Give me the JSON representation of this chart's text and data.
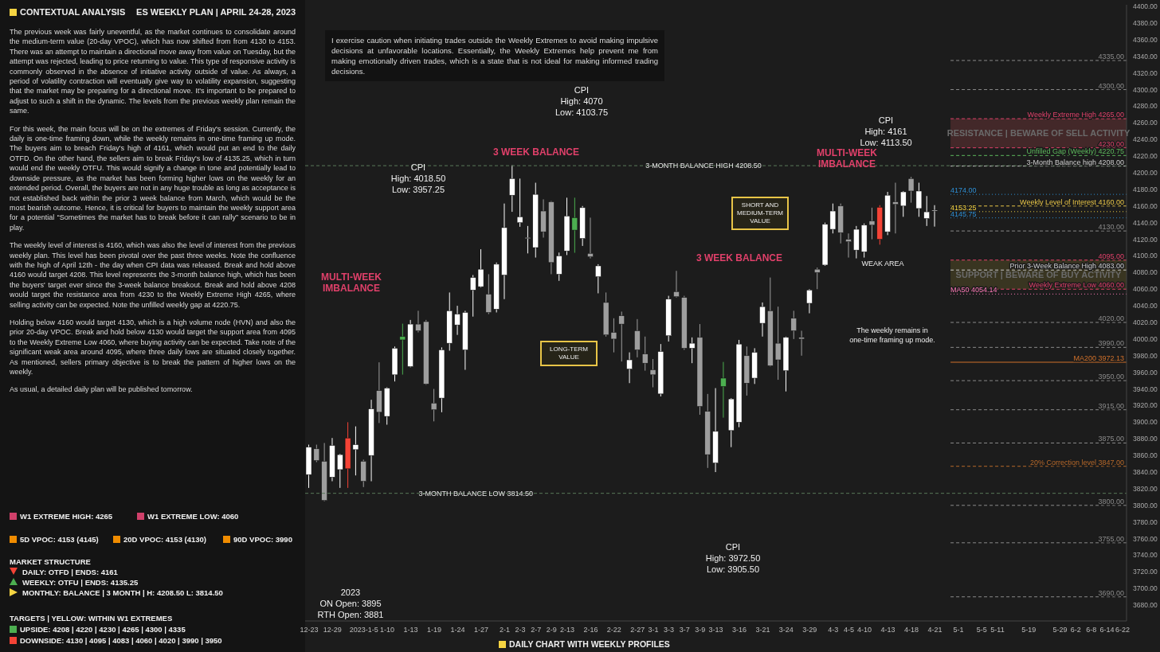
{
  "chart_data": {
    "type": "candlestick",
    "title": "ES WEEKLY PLAN | APRIL 24-28, 2023",
    "subtitle": "CONTEXTUAL ANALYSIS",
    "categories": [
      "12-23",
      null,
      null,
      "12-29",
      null,
      null,
      null,
      "2023-1-5",
      null,
      null,
      "1-10",
      null,
      null,
      "1-13",
      null,
      null,
      "1-19",
      null,
      null,
      "1-24",
      null,
      null,
      "1-27",
      null,
      null,
      "2-1",
      null,
      "2-3",
      null,
      "2-7",
      null,
      "2-9",
      null,
      "2-13",
      null,
      null,
      "2-16",
      null,
      null,
      "2-22",
      null,
      null,
      "2-27",
      null,
      "3-1",
      null,
      "3-3",
      null,
      "3-7",
      null,
      "3-9",
      null,
      "3-13",
      null,
      null,
      "3-16",
      null,
      null,
      "3-21",
      null,
      null,
      "3-24",
      null,
      null,
      "3-29",
      null,
      null,
      "4-3",
      null,
      "4-5",
      null,
      "4-10",
      null,
      null,
      "4-13",
      null,
      null,
      "4-18",
      null,
      null,
      "4-21",
      null,
      null,
      "5-1",
      null,
      null,
      "5-5",
      null,
      "5-11",
      null,
      null,
      null,
      "5-19",
      null,
      null,
      null,
      "5-29",
      null,
      "6-2",
      null,
      "6-8",
      null,
      "6-14",
      null,
      "6-22"
    ],
    "ohlc": [
      [
        3837,
        3873,
        3821,
        3870
      ],
      [
        3868,
        3873,
        3852,
        3854
      ],
      [
        3853,
        3875,
        3805,
        3806
      ],
      [
        3834,
        3881,
        3829,
        3872
      ],
      [
        3843,
        3862,
        3821,
        3861
      ],
      [
        3881,
        3900,
        3821,
        3844
      ],
      [
        3867,
        3895,
        3836,
        3873
      ],
      [
        3853,
        3855,
        3822,
        3829
      ],
      [
        3860,
        3927,
        3829,
        3916
      ],
      [
        3938,
        3972,
        3899,
        3912
      ],
      [
        3907,
        3942,
        3897,
        3941
      ],
      [
        3957,
        3991,
        3949,
        3989
      ],
      [
        3999,
        4018.5,
        3957.25,
        4003
      ],
      [
        3967,
        4023,
        3966,
        4018
      ],
      [
        4018,
        4034,
        4008,
        4010
      ],
      [
        4021,
        4023,
        3945,
        3946
      ],
      [
        3923,
        3940,
        3901,
        3915
      ],
      [
        3929,
        3990,
        3912,
        3987
      ],
      [
        3995,
        4056,
        3986,
        4034
      ],
      [
        4017,
        4040,
        4005,
        4030
      ],
      [
        3987,
        4034,
        3963,
        4032
      ],
      [
        4059,
        4077,
        4027,
        4074
      ],
      [
        4063,
        4108,
        4062,
        4084
      ],
      [
        4054,
        4078,
        4030,
        4032
      ],
      [
        4036,
        4092,
        4032,
        4090
      ],
      [
        4077,
        4163,
        4048,
        4134
      ],
      [
        4173,
        4209,
        4153,
        4193
      ],
      [
        4140,
        4193,
        4135,
        4147
      ],
      [
        4121,
        4136,
        4103,
        4122
      ],
      [
        4110,
        4188,
        4098,
        4174
      ],
      [
        4154,
        4168,
        4122,
        4129
      ],
      [
        4165,
        4166,
        4078,
        4092
      ],
      [
        4078,
        4104,
        4070,
        4100
      ],
      [
        4106,
        4170,
        4101,
        4148
      ],
      [
        4131,
        4170,
        4103.75,
        4146
      ],
      [
        4121,
        4160,
        4112,
        4158
      ],
      [
        4103,
        4146,
        4097,
        4099
      ],
      [
        4075,
        4090,
        4055,
        4088
      ],
      [
        4044,
        4056,
        4003,
        4005
      ],
      [
        4008,
        4025,
        3984,
        4000
      ],
      [
        4028,
        4033,
        3973,
        4018
      ],
      [
        3964,
        3984,
        3947,
        3975
      ],
      [
        4010,
        4024,
        3978,
        3987
      ],
      [
        3982,
        4003,
        3962,
        3971
      ],
      [
        3963,
        3976,
        3942,
        3957
      ],
      [
        3934,
        3994,
        3931,
        3985
      ],
      [
        4004,
        4052,
        3997,
        4048
      ],
      [
        4057,
        4082,
        4050,
        4051
      ],
      [
        4050,
        4052,
        3987,
        3989
      ],
      [
        3989,
        4002,
        3971,
        3995
      ],
      [
        4002,
        4018,
        3909,
        3919
      ],
      [
        3913,
        3934,
        3845,
        3861
      ],
      [
        3851,
        3941,
        3840,
        3889
      ],
      [
        3943,
        3972.5,
        3905.5,
        3953
      ],
      [
        3890,
        3929,
        3870,
        3928
      ],
      [
        3900,
        3999,
        3894,
        3994
      ],
      [
        3980,
        3991,
        3932,
        3947
      ],
      [
        3953,
        3989,
        3946,
        3984
      ],
      [
        4019,
        4044,
        4003,
        4039
      ],
      [
        4034,
        4074,
        3967,
        3968
      ],
      [
        3995,
        4039,
        3951,
        3975
      ],
      [
        3962,
        4003,
        3937,
        4002
      ],
      [
        4025,
        4034,
        4000,
        4010
      ],
      [
        4002,
        4010,
        3980,
        4000
      ],
      [
        4043,
        4060,
        4031,
        4059
      ],
      [
        4084,
        4086,
        4060,
        4080
      ],
      [
        4089,
        4140,
        4088,
        4138
      ],
      [
        4132,
        4163,
        4127,
        4154
      ],
      [
        4160,
        4163,
        4115,
        4128
      ],
      [
        4120,
        4127,
        4098,
        4117
      ],
      [
        4107,
        4136,
        4097,
        4132
      ],
      [
        4105,
        4139,
        4098,
        4137
      ],
      [
        4142,
        4158,
        4120,
        4137
      ],
      [
        4158.5,
        4161,
        4113.5,
        4120
      ],
      [
        4129,
        4177,
        4125,
        4173
      ],
      [
        4165,
        4188,
        4127,
        4162
      ],
      [
        4160,
        4178,
        4147,
        4177
      ],
      [
        4193,
        4195,
        4164,
        4178
      ],
      [
        4157,
        4188,
        4147,
        4178
      ],
      [
        4145,
        4172,
        4136,
        4153
      ],
      [
        4154,
        4161,
        4135.25,
        4155
      ],
      null,
      null,
      null,
      null,
      null,
      null,
      null,
      null,
      null,
      null,
      null,
      null,
      null,
      null,
      null,
      null,
      null,
      null,
      null,
      null,
      null,
      null,
      null,
      null
    ],
    "colors": [
      "#ffffff",
      "#9e9e9e",
      "#9e9e9e",
      "#ffffff",
      "#ffffff",
      "#f44336",
      "#ffffff",
      "#9e9e9e",
      "#ffffff",
      "#9e9e9e",
      "#ffffff",
      "#ffffff",
      "#4caf50",
      "#ffffff",
      "#9e9e9e",
      "#9e9e9e",
      "#9e9e9e",
      "#ffffff",
      "#ffffff",
      "#ffffff",
      "#ffffff",
      "#ffffff",
      "#ffffff",
      "#9e9e9e",
      "#ffffff",
      "#ffffff",
      "#ffffff",
      "#ffffff",
      "#ffffff",
      "#ffffff",
      "#9e9e9e",
      "#9e9e9e",
      "#ffffff",
      "#ffffff",
      "#4caf50",
      "#ffffff",
      "#9e9e9e",
      "#ffffff",
      "#9e9e9e",
      "#9e9e9e",
      "#9e9e9e",
      "#ffffff",
      "#9e9e9e",
      "#9e9e9e",
      "#9e9e9e",
      "#ffffff",
      "#ffffff",
      "#9e9e9e",
      "#9e9e9e",
      "#ffffff",
      "#9e9e9e",
      "#9e9e9e",
      "#ffffff",
      "#4caf50",
      "#ffffff",
      "#ffffff",
      "#9e9e9e",
      "#ffffff",
      "#ffffff",
      "#9e9e9e",
      "#9e9e9e",
      "#ffffff",
      "#9e9e9e",
      "#9e9e9e",
      "#ffffff",
      "#9e9e9e",
      "#ffffff",
      "#ffffff",
      "#9e9e9e",
      "#9e9e9e",
      "#ffffff",
      "#ffffff",
      "#9e9e9e",
      "#f44336",
      "#ffffff",
      "#9e9e9e",
      "#ffffff",
      "#9e9e9e",
      "#ffffff",
      "#ffffff",
      "#ffffff",
      null,
      null,
      null,
      null,
      null,
      null,
      null,
      null,
      null,
      null,
      null,
      null,
      null,
      null,
      null,
      null,
      null,
      null,
      null,
      null,
      null,
      null,
      null,
      null
    ],
    "ylim": [
      3661,
      4402
    ],
    "yticks": [
      {
        "value": 4400,
        "label": "4400.00"
      },
      {
        "value": 4380,
        "label": "4380.00"
      },
      {
        "value": 4360,
        "label": "4360.00"
      },
      {
        "value": 4340,
        "label": "4340.00"
      },
      {
        "value": 4320,
        "label": "4320.00"
      },
      {
        "value": 4300,
        "label": "4300.00"
      },
      {
        "value": 4280,
        "label": "4280.00"
      },
      {
        "value": 4260,
        "label": "4260.00"
      },
      {
        "value": 4240,
        "label": "4240.00"
      },
      {
        "value": 4220,
        "label": "4220.00"
      },
      {
        "value": 4200,
        "label": "4200.00"
      },
      {
        "value": 4180,
        "label": "4180.00"
      },
      {
        "value": 4160,
        "label": "4160.00"
      },
      {
        "value": 4140,
        "label": "4140.00"
      },
      {
        "value": 4120,
        "label": "4120.00"
      },
      {
        "value": 4100,
        "label": "4100.00"
      },
      {
        "value": 4080,
        "label": "4080.00"
      },
      {
        "value": 4060,
        "label": "4060.00"
      },
      {
        "value": 4040,
        "label": "4040.00"
      },
      {
        "value": 4020,
        "label": "4020.00"
      },
      {
        "value": 4000,
        "label": "4000.00"
      },
      {
        "value": 3980,
        "label": "3980.00"
      },
      {
        "value": 3960,
        "label": "3960.00"
      },
      {
        "value": 3940,
        "label": "3940.00"
      },
      {
        "value": 3920,
        "label": "3920.00"
      },
      {
        "value": 3900,
        "label": "3900.00"
      },
      {
        "value": 3880,
        "label": "3880.00"
      },
      {
        "value": 3860,
        "label": "3860.00"
      },
      {
        "value": 3840,
        "label": "3840.00"
      },
      {
        "value": 3820,
        "label": "3820.00"
      },
      {
        "value": 3800,
        "label": "3800.00"
      },
      {
        "value": 3780,
        "label": "3780.00"
      },
      {
        "value": 3760,
        "label": "3760.00"
      },
      {
        "value": 3740,
        "label": "3740.00"
      },
      {
        "value": 3720,
        "label": "3720.00"
      },
      {
        "value": 3700,
        "label": "3700.00"
      },
      {
        "value": 3680,
        "label": "3680.00"
      }
    ],
    "ref_lines": [
      {
        "axis": "y",
        "value": 4335,
        "label": "4335.00",
        "color": "#8a8a8a",
        "line_style": "dashed"
      },
      {
        "axis": "y",
        "value": 4300,
        "label": "4300.00",
        "color": "#8a8a8a",
        "line_style": "dashed"
      },
      {
        "axis": "y",
        "value": 4265,
        "label": "Weekly Extreme High 4265.00",
        "color": "#e0406a",
        "line_style": "dashed"
      },
      {
        "axis": "y",
        "value": 4230,
        "label": "4230.00",
        "color": "#e0406a",
        "line_style": "dashed"
      },
      {
        "axis": "y",
        "value": 4220.75,
        "label": "Unfilled Gap (Weekly) 4220.75",
        "color": "#5cb85c",
        "line_style": "dashed"
      },
      {
        "axis": "y",
        "value": 4208,
        "label": "3-Month Balance high 4208.00",
        "color": "#cccccc",
        "line_style": "dashed"
      },
      {
        "axis": "y",
        "value": 4208.5,
        "label": null,
        "color": "#5a7a5a",
        "line_style": "dashed"
      },
      {
        "axis": "y",
        "value": 4174,
        "label": "4174.00",
        "color": "#2d8fd5",
        "line_style": "dotted"
      },
      {
        "axis": "y",
        "value": 4160,
        "label": "Weekly Level of Interest 4160.00",
        "color": "#e8c547",
        "line_style": "dashed"
      },
      {
        "axis": "y",
        "value": 4153.25,
        "label": "4153.25",
        "color": "#f5d442",
        "line_style": "dotted"
      },
      {
        "axis": "y",
        "value": 4145.75,
        "label": "4145.75",
        "color": "#2d8fd5",
        "line_style": "dotted"
      },
      {
        "axis": "y",
        "value": 4130,
        "label": "4130.00",
        "color": "#8a8a8a",
        "line_style": "dashed"
      },
      {
        "axis": "y",
        "value": 4095,
        "label": "4095.00",
        "color": "#e0406a",
        "line_style": "dashed"
      },
      {
        "axis": "y",
        "value": 4083,
        "label": "Prior 3-Week Balance High 4083.00",
        "color": "#cccccc",
        "line_style": "dashed"
      },
      {
        "axis": "y",
        "value": 4060,
        "label": "Weekly Extreme Low 4060.00",
        "color": "#e0406a",
        "line_style": "dashed"
      },
      {
        "axis": "y",
        "value": 4054.14,
        "label": "MA50 4054.14",
        "color": "#ff7ab8",
        "line_style": "dotted"
      },
      {
        "axis": "y",
        "value": 4020,
        "label": "4020.00",
        "color": "#8a8a8a",
        "line_style": "dashed"
      },
      {
        "axis": "y",
        "value": 3990,
        "label": "3990.00",
        "color": "#8a8a8a",
        "line_style": "dashed"
      },
      {
        "axis": "y",
        "value": 3972.13,
        "label": "MA200 3972.13",
        "color": "#d0702a",
        "line_style": "solid"
      },
      {
        "axis": "y",
        "value": 3950,
        "label": "3950.00",
        "color": "#8a8a8a",
        "line_style": "dashed"
      },
      {
        "axis": "y",
        "value": 3915,
        "label": "3915.00",
        "color": "#8a8a8a",
        "line_style": "dashed"
      },
      {
        "axis": "y",
        "value": 3875,
        "label": "3875.00",
        "color": "#8a8a8a",
        "line_style": "dashed"
      },
      {
        "axis": "y",
        "value": 3847,
        "label": "20% Correction level 3847.00",
        "color": "#b8692a",
        "line_style": "dashed"
      },
      {
        "axis": "y",
        "value": 3814.5,
        "label": null,
        "color": "#5a7a5a",
        "line_style": "dashed"
      },
      {
        "axis": "y",
        "value": 3800,
        "label": "3800.00",
        "color": "#8a8a8a",
        "line_style": "dashed"
      },
      {
        "axis": "y",
        "value": 3755,
        "label": "3755.00",
        "color": "#8a8a8a",
        "line_style": "dashed"
      },
      {
        "axis": "y",
        "value": 3690,
        "label": "3690.00",
        "color": "#8a8a8a",
        "line_style": "dashed"
      }
    ],
    "bands": [
      {
        "axis": "y",
        "from": 4230,
        "to": 4265,
        "label": "RESISTANCE | BEWARE OF SELL ACTIVITY",
        "color": "#4a2a2c"
      },
      {
        "axis": "y",
        "from": 4060,
        "to": 4095,
        "label": "SUPPORT | BEWARE OF BUY ACTIVITY",
        "color": "#3e3a22"
      }
    ],
    "annotations": [
      "The previous week was fairly uneventful, as the market continues to consolidate around the medium-term value (20-day VPOC), which has now shifted from from 4130 to 4153. There was an attempt to maintain a directional move away from value on Tuesday, but the attempt was rejected, leading to price returning to value. This type of responsive activity is commonly observed in the absence of initiative activity outside of value. As always, a period of volatility contraction will eventually give way to volatility expansion, suggesting that the market may be preparing for a directional move. It's important to be prepared to adjust to such a shift in the dynamic. The levels from the previous weekly plan remain the same.",
      "For this week, the main focus will be on the extremes of Friday's session. Currently, the daily is one-time framing down, while the weekly remains in one-time framing up mode. The buyers aim to breach Friday's high of 4161, which would put an end to the daily OTFD. On the other hand, the sellers aim to break Friday's low of 4135.25, which in turn would end the weekly OTFU. This would signify a change in tone and potentially lead to downside pressure, as the market has been forming higher lows on the weekly for an extended period. Overall, the buyers are not in any huge trouble as long as acceptance is not established back within the prior 3 week balance from March, which would be the most bearish outcome. Hence, it is critical for buyers to maintain the weekly support area for a potential “Sometimes the market has to break before it can rally” scenario to be in play.",
      "The weekly level of interest is 4160, which was also the level of interest from the previous weekly plan. This level has been pivotal over the past three weeks. Note the confluence with the high of April 12th - the day when CPI data was released. Break and hold above 4160 would target 4208. This level represents the 3-month balance high, which has been the buyers' target ever since the 3-week balance breakout. Break and hold above 4208 would target the resistance area from 4230 to the Weekly Extreme High 4265, where selling activity can be expected. Note the unfilled weekly gap at 4220.75.",
      "Holding below 4160 would target 4130, which is a high volume node (HVN) and also the prior 20-day VPOC. Break and hold below 4130 would target the support area from 4095 to the Weekly Extreme Low 4060, where buying activity can be expected. Take note of the significant weak area around 4095, where three daily lows are situated closely together. As mentioned, sellers primary objective is to break the pattern of higher lows on the weekly.",
      "As usual, a detailed daily plan will be published tomorrow.",
      "W1 EXTREME HIGH: 4265",
      "W1 EXTREME LOW: 4060",
      "5D VPOC: 4153 (4145)",
      "20D VPOC: 4153 (4130)",
      "90D VPOC: 3990",
      "MARKET STRUCTURE",
      "DAILY: OTFD | ENDS: 4161",
      "WEEKLY: OTFU | ENDS: 4135.25",
      "MONTHLY: BALANCE | 3 MONTH | H: 4208.50 L: 3814.50",
      "TARGETS | YELLOW: WITHIN W1 EXTREMES",
      "UPSIDE: 4208 | 4220 | 4230 | 4265 | 4300 | 4335",
      "DOWNSIDE: 4130 | 4095 | 4083 | 4060 | 4020 | 3990 | 3950",
      "I exercise caution when initiating trades outside the Weekly Extremes to avoid making impulsive decisions at unfavorable locations. Essentially, the Weekly Extremes help prevent me from making emotionally driven trades, which is a state that is not ideal for making informed trading decisions.",
      "CPI\nHigh: 4018.50\nLow: 3957.25",
      "CPI\nHigh: 4070\nLow: 4103.75",
      "CPI\nHigh: 3972.50\nLow: 3905.50",
      "CPI\nHigh: 4161\nLow: 4113.50",
      "2023\nON Open: 3895\nRTH Open: 3881",
      "MULTI-WEEK\nIMBALANCE",
      "3 WEEK BALANCE",
      "3 WEEK BALANCE",
      "MULTI-WEEK\nIMBALANCE",
      "SHORT AND\nMEDIUM-TERM\nVALUE",
      "LONG-TERM\nVALUE",
      "WEAK AREA",
      "The weekly remains in\none-time framing up mode.",
      {
        "text": "3-MONTH BALANCE HIGH 4208.50",
        "x": "2-27",
        "y": 4208.5
      },
      {
        "text": "3-MONTH BALANCE LOW 3814.50",
        "x": "1-13",
        "y": 3814.5
      },
      "DAILY CHART WITH WEEKLY PROFILES"
    ]
  }
}
